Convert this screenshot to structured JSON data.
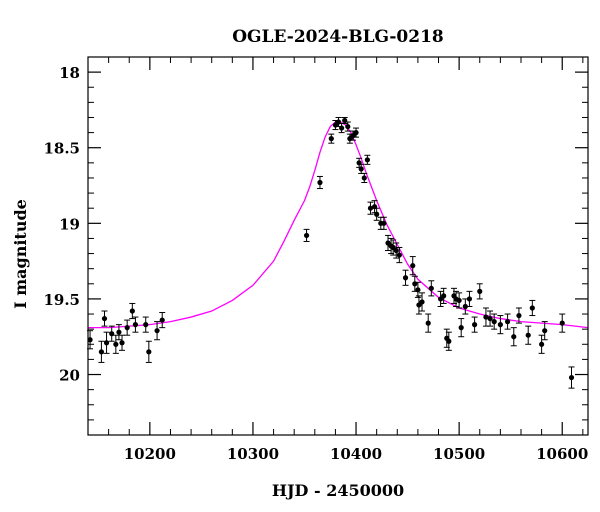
{
  "chart_data": {
    "type": "scatter",
    "title": "OGLE-2024-BLG-0218",
    "xlabel": "HJD - 2450000",
    "ylabel": "I magnitude",
    "xlim": [
      10140,
      10625
    ],
    "ylim": [
      20.4,
      17.9
    ],
    "y_inverted": true,
    "x_ticks": [
      10200,
      10300,
      10400,
      10500,
      10600
    ],
    "x_tick_labels": [
      "10200",
      "10300",
      "10400",
      "10500",
      "10600"
    ],
    "x_minor_step": 20,
    "y_ticks": [
      18,
      18.5,
      19,
      19.5,
      20
    ],
    "y_tick_labels": [
      "18",
      "18.5",
      "19",
      "19.5",
      "20"
    ],
    "y_minor_step": 0.1,
    "grid": false,
    "series": [
      {
        "kind": "points_with_errorbars",
        "color": "#000000",
        "x": [
          10142,
          10153,
          10156,
          10158,
          10163,
          10167,
          10170,
          10173,
          10178,
          10183,
          10186,
          10196,
          10199,
          10207,
          10212,
          10352,
          10365,
          10376,
          10380,
          10383,
          10386,
          10389,
          10392,
          10394,
          10397,
          10400,
          10403,
          10405,
          10408,
          10411,
          10414,
          10418,
          10420,
          10424,
          10427,
          10431,
          10434,
          10436,
          10439,
          10442,
          10448,
          10455,
          10457,
          10460,
          10461,
          10464,
          10470,
          10473,
          10482,
          10485,
          10488,
          10490,
          10495,
          10497,
          10500,
          10502,
          10506,
          10510,
          10515,
          10520,
          10526,
          10530,
          10534,
          10540,
          10547,
          10553,
          10558,
          10567,
          10571,
          10580,
          10583,
          10600,
          10609
        ],
        "y": [
          19.77,
          19.85,
          19.63,
          19.79,
          19.73,
          19.8,
          19.72,
          19.79,
          19.69,
          19.58,
          19.67,
          19.67,
          19.85,
          19.71,
          19.64,
          19.08,
          18.73,
          18.44,
          18.35,
          18.33,
          18.37,
          18.32,
          18.36,
          18.44,
          18.42,
          18.4,
          18.6,
          18.64,
          18.7,
          18.58,
          18.9,
          18.89,
          18.94,
          19.0,
          19.0,
          19.13,
          19.15,
          19.16,
          19.18,
          19.21,
          19.36,
          19.28,
          19.4,
          19.44,
          19.54,
          19.52,
          19.66,
          19.43,
          19.5,
          19.48,
          19.76,
          19.78,
          19.48,
          19.5,
          19.51,
          19.69,
          19.55,
          19.5,
          19.67,
          19.45,
          19.62,
          19.63,
          19.65,
          19.67,
          19.65,
          19.75,
          19.61,
          19.74,
          19.56,
          19.8,
          19.71,
          19.66,
          20.02
        ],
        "yerr": [
          0.06,
          0.07,
          0.05,
          0.07,
          0.05,
          0.06,
          0.05,
          0.05,
          0.05,
          0.05,
          0.05,
          0.05,
          0.07,
          0.06,
          0.05,
          0.04,
          0.04,
          0.03,
          0.03,
          0.03,
          0.03,
          0.02,
          0.03,
          0.03,
          0.03,
          0.03,
          0.03,
          0.03,
          0.03,
          0.03,
          0.04,
          0.04,
          0.04,
          0.04,
          0.04,
          0.05,
          0.05,
          0.05,
          0.05,
          0.05,
          0.05,
          0.06,
          0.05,
          0.05,
          0.06,
          0.06,
          0.06,
          0.05,
          0.05,
          0.05,
          0.06,
          0.06,
          0.05,
          0.05,
          0.05,
          0.06,
          0.05,
          0.05,
          0.05,
          0.05,
          0.06,
          0.05,
          0.05,
          0.06,
          0.05,
          0.06,
          0.05,
          0.06,
          0.05,
          0.06,
          0.06,
          0.06,
          0.07
        ]
      },
      {
        "kind": "model_curve",
        "color": "#ff00ff",
        "x": [
          10140,
          10160,
          10180,
          10200,
          10220,
          10240,
          10260,
          10280,
          10300,
          10320,
          10330,
          10340,
          10350,
          10355,
          10360,
          10365,
          10370,
          10375,
          10380,
          10385,
          10390,
          10395,
          10400,
          10405,
          10410,
          10415,
          10420,
          10430,
          10440,
          10450,
          10460,
          10480,
          10500,
          10520,
          10540,
          10560,
          10580,
          10600,
          10625
        ],
        "y": [
          19.69,
          19.69,
          19.68,
          19.67,
          19.65,
          19.62,
          19.58,
          19.51,
          19.41,
          19.25,
          19.12,
          18.98,
          18.85,
          18.76,
          18.65,
          18.53,
          18.43,
          18.36,
          18.33,
          18.33,
          18.35,
          18.4,
          18.48,
          18.57,
          18.67,
          18.76,
          18.85,
          19.01,
          19.14,
          19.27,
          19.37,
          19.49,
          19.56,
          19.6,
          19.63,
          19.65,
          19.66,
          19.67,
          19.69
        ]
      }
    ]
  }
}
